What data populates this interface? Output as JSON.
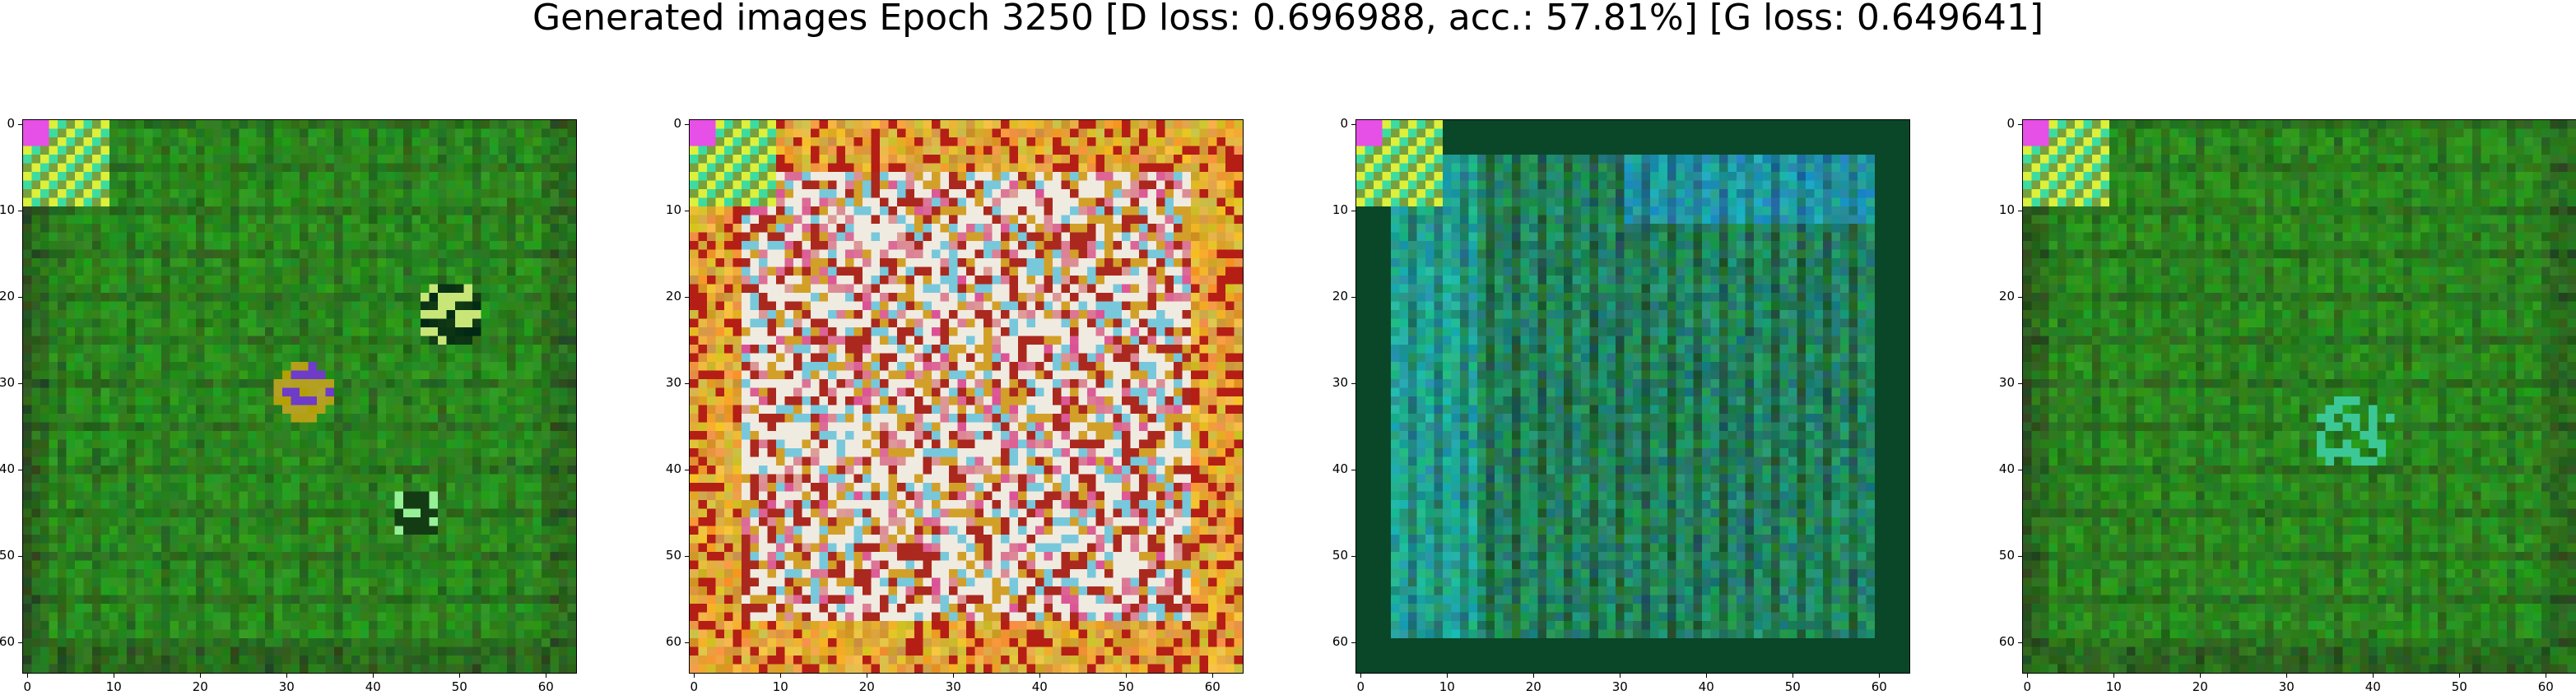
{
  "figure": {
    "title": "Generated images Epoch 3250 [D loss: 0.696988, acc.: 57.81%] [G loss: 0.649641]"
  },
  "axes": {
    "x_ticks": [
      "0",
      "10",
      "20",
      "30",
      "40",
      "50",
      "60"
    ],
    "y_ticks": [
      "0",
      "10",
      "20",
      "30",
      "40",
      "50",
      "60"
    ],
    "range": [
      0,
      64
    ]
  },
  "panels": [
    {
      "id": "panel-1",
      "palette": "green",
      "base_color": "#2f8a1c",
      "feature": "center-blobs"
    },
    {
      "id": "panel-2",
      "palette": "multicolor",
      "base_color": "#d9a02a",
      "feature": "checkered"
    },
    {
      "id": "panel-3",
      "palette": "teal",
      "base_color": "#1c7a55",
      "feature": "vertical-stripes"
    },
    {
      "id": "panel-4",
      "palette": "green",
      "base_color": "#27862a",
      "feature": "faint-center"
    }
  ]
}
